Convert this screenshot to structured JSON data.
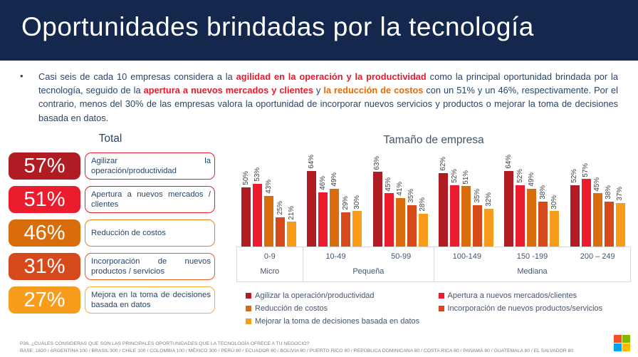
{
  "header": {
    "title": "Oportunidades brindadas por la tecnología"
  },
  "intro": {
    "bullet": "•",
    "segments": [
      {
        "style": "normal",
        "text": "Casi seis de cada 10 empresas considera a la "
      },
      {
        "style": "bold-red",
        "text": "agilidad en la operación y la productividad"
      },
      {
        "style": "normal",
        "text": " como la principal oportunidad brindada por la tecnología, seguido de la "
      },
      {
        "style": "bold-red",
        "text": "apertura a nuevos mercados y clientes"
      },
      {
        "style": "normal",
        "text": " y "
      },
      {
        "style": "bold-orange",
        "text": "la reducción de costos"
      },
      {
        "style": "normal",
        "text": " con un 51% y un 46%, respectivamente. Por el contrario, menos del 30% de las empresas valora la oportunidad de incorporar nuevos servicios y productos o mejorar la toma de decisiones basada en datos."
      }
    ]
  },
  "total_panel": {
    "title": "Total",
    "items": [
      {
        "value": "57%",
        "label": "Agilizar la operación/productividad",
        "color": "#b11b23",
        "border": "#ec1c2b"
      },
      {
        "value": "51%",
        "label": "Apertura a nuevos mercados / clientes",
        "color": "#eb1c2d",
        "border": "#ec1c2b"
      },
      {
        "value": "46%",
        "label": "Reducción de costos",
        "color": "#d96d0b",
        "border": "#e8830f"
      },
      {
        "value": "31%",
        "label": "Incorporación de nuevos productos / servicios",
        "color": "#d6491a",
        "border": "#e85a1f"
      },
      {
        "value": "27%",
        "label": "Mejora en la toma de decisiones basada en datos",
        "color": "#f89c1c",
        "border": "#fbaa37"
      }
    ]
  },
  "chart_data": {
    "type": "bar",
    "title": "Tamaño de empresa",
    "value_suffix": "%",
    "ylim": [
      0,
      70
    ],
    "grid": false,
    "legend_position": "bottom",
    "categories": [
      "0-9",
      "10-49",
      "50-99",
      "100-149",
      "150 -199",
      "200 – 249"
    ],
    "category_groups": [
      {
        "label": "Micro",
        "span": 1
      },
      {
        "label": "Pequeña",
        "span": 2
      },
      {
        "label": "Mediana",
        "span": 3
      }
    ],
    "series": [
      {
        "name": "Agilizar la operación/productividad",
        "color": "#b11b23",
        "values": [
          50,
          64,
          63,
          62,
          64,
          52
        ]
      },
      {
        "name": "Apertura a nuevos mercados/clientes",
        "color": "#eb1c2d",
        "values": [
          53,
          46,
          45,
          52,
          52,
          57
        ]
      },
      {
        "name": "Reducción de costos",
        "color": "#d96d0b",
        "values": [
          43,
          49,
          41,
          51,
          49,
          45
        ]
      },
      {
        "name": "Incorporación de nuevos productos/servicios",
        "color": "#d6491a",
        "values": [
          25,
          29,
          35,
          35,
          38,
          38
        ]
      },
      {
        "name": "Mejorar la toma de decisiones basada en datos",
        "color": "#f89c1c",
        "values": [
          21,
          30,
          28,
          32,
          30,
          37
        ]
      }
    ]
  },
  "legend": {
    "columns": [
      [
        {
          "label": "Agilizar la operación/productividad",
          "color": "#b11b23"
        },
        {
          "label": "Reducción de costos",
          "color": "#d96d0b"
        },
        {
          "label": "Mejorar la toma de decisiones basada en datos",
          "color": "#f89c1c"
        }
      ],
      [
        {
          "label": "Apertura a nuevos mercados/clientes",
          "color": "#eb1c2d"
        },
        {
          "label": "Incorporación de nuevos productos/servicios",
          "color": "#d6491a"
        }
      ]
    ]
  },
  "footer": {
    "question": "P36. ¿CUÁLES CONSIDERAS QUE SON LAS PRINCIPALES OPORTUNIDADES QUE LA TECNOLOGÍA OFRECE A TU NEGOCIO?",
    "base": "BASE: 1620 / ARGENTINA 100 / BRASIL 300 / CHILE 100 / COLOMBIA 100 / MÉXICO 300 / PERÚ 80 / ECUADOR 80 / BOLIVIA 80 / PUERTO RICO 80 / REPÚBLICA DOMINICANA 80 / COSTA RICA 80 / PANAMÁ 80 / GUATEMALA 80 / EL SALVADOR 80"
  },
  "logo": {
    "name": "microsoft-logo",
    "colors": [
      "#f25022",
      "#7fba00",
      "#00a4ef",
      "#ffb900"
    ]
  }
}
